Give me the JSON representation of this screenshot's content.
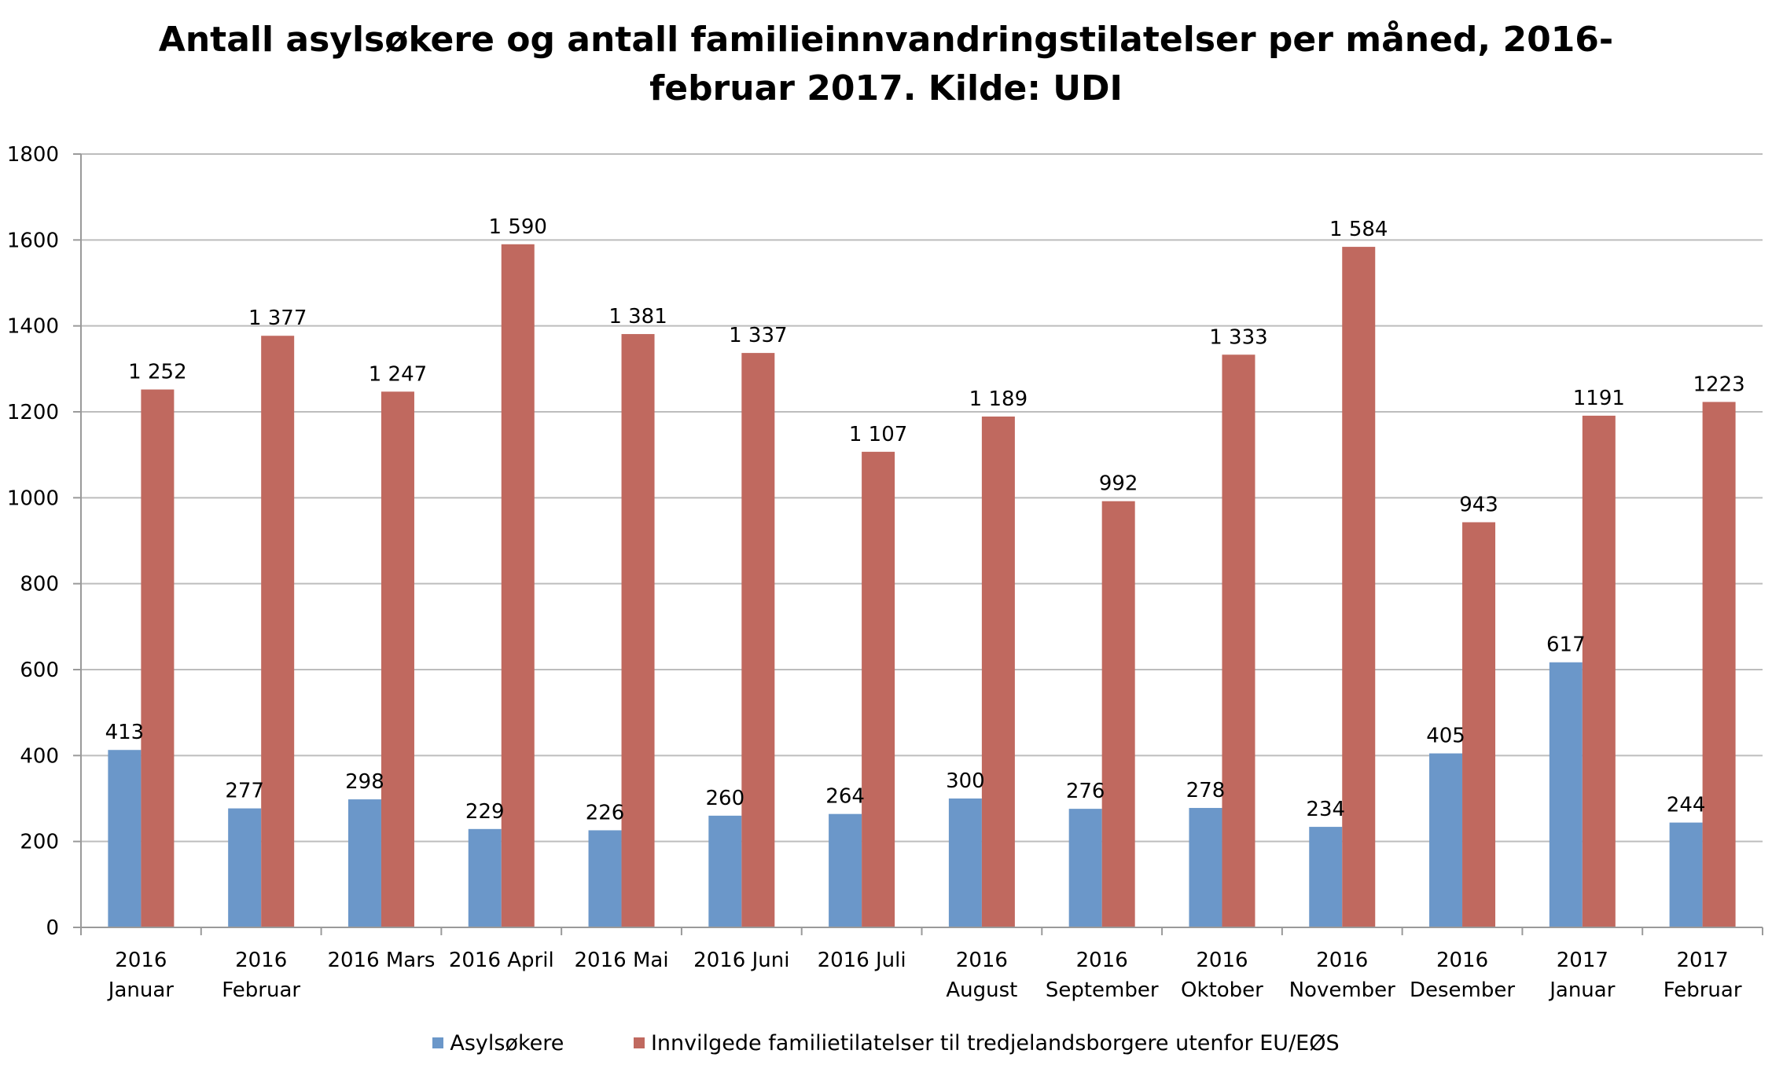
{
  "chart_data": {
    "type": "bar",
    "title_lines": [
      "Antall asylsøkere og antall familieinnvandringstilatelser per måned, 2016-",
      "februar 2017. Kilde: UDI"
    ],
    "categories": [
      [
        "2016",
        "Januar"
      ],
      [
        "2016",
        "Februar"
      ],
      [
        "2016 Mars"
      ],
      [
        "2016 April"
      ],
      [
        "2016 Mai"
      ],
      [
        "2016 Juni"
      ],
      [
        "2016 Juli"
      ],
      [
        "2016",
        "August"
      ],
      [
        "2016",
        "September"
      ],
      [
        "2016",
        "Oktober"
      ],
      [
        "2016",
        "November"
      ],
      [
        "2016",
        "Desember"
      ],
      [
        "2017",
        "Januar"
      ],
      [
        "2017",
        "Februar"
      ]
    ],
    "series": [
      {
        "name": "Asylsøkere",
        "color": "#6b97c9",
        "values": [
          413,
          277,
          298,
          229,
          226,
          260,
          264,
          300,
          276,
          278,
          234,
          405,
          617,
          244
        ],
        "labels": [
          "413",
          "277",
          "298",
          "229",
          "226",
          "260",
          "264",
          "300",
          "276",
          "278",
          "234",
          "405",
          "617",
          "244"
        ]
      },
      {
        "name": "Innvilgede familietilatelser til tredjelandsborgere utenfor EU/EØS",
        "color": "#c0695f",
        "values": [
          1252,
          1377,
          1247,
          1590,
          1381,
          1337,
          1107,
          1189,
          992,
          1333,
          1584,
          943,
          1191,
          1223
        ],
        "labels": [
          "1 252",
          "1 377",
          "1 247",
          "1 590",
          "1 381",
          "1 337",
          "1 107",
          "1 189",
          "992",
          "1 333",
          "1 584",
          "943",
          "1191",
          "1223"
        ]
      }
    ],
    "ylim": [
      0,
      1800
    ],
    "yticks": [
      0,
      200,
      400,
      600,
      800,
      1000,
      1200,
      1400,
      1600,
      1800
    ],
    "grid": true,
    "legend_position": "bottom",
    "xlabel": "",
    "ylabel": ""
  }
}
